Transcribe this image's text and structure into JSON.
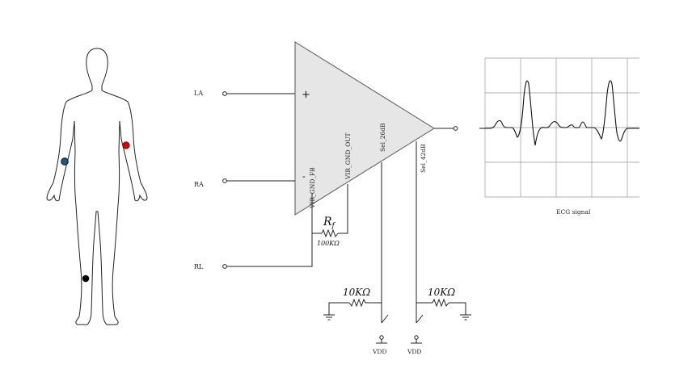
{
  "inputs": {
    "la": {
      "label": "LA",
      "color": "#e8312f"
    },
    "ra": {
      "label": "RA",
      "color": "#3b44c8"
    },
    "rl": {
      "label": "RL",
      "color": "#222222"
    }
  },
  "electrodes": {
    "left_arm_color": "#e00000",
    "right_arm_color": "#1a5c87",
    "leg_color": "#000000"
  },
  "amplifier": {
    "plus": "+",
    "minus": "-",
    "pin_fb": "VIR_GND_FB",
    "pin_out": "VIR_GND_OUT",
    "pin_sel26": "Sel_26dB",
    "pin_sel42": "Sel_42dB",
    "fill": "#e6e6e6"
  },
  "feedback": {
    "rf_symbol": "R",
    "rf_sub": "f",
    "rf_value": "100KΩ"
  },
  "gain_select": {
    "r1_value": "10KΩ",
    "r2_value": "10KΩ",
    "vdd1": "VDD",
    "vdd2": "VDD"
  },
  "ecg": {
    "caption": "ECG signal"
  }
}
